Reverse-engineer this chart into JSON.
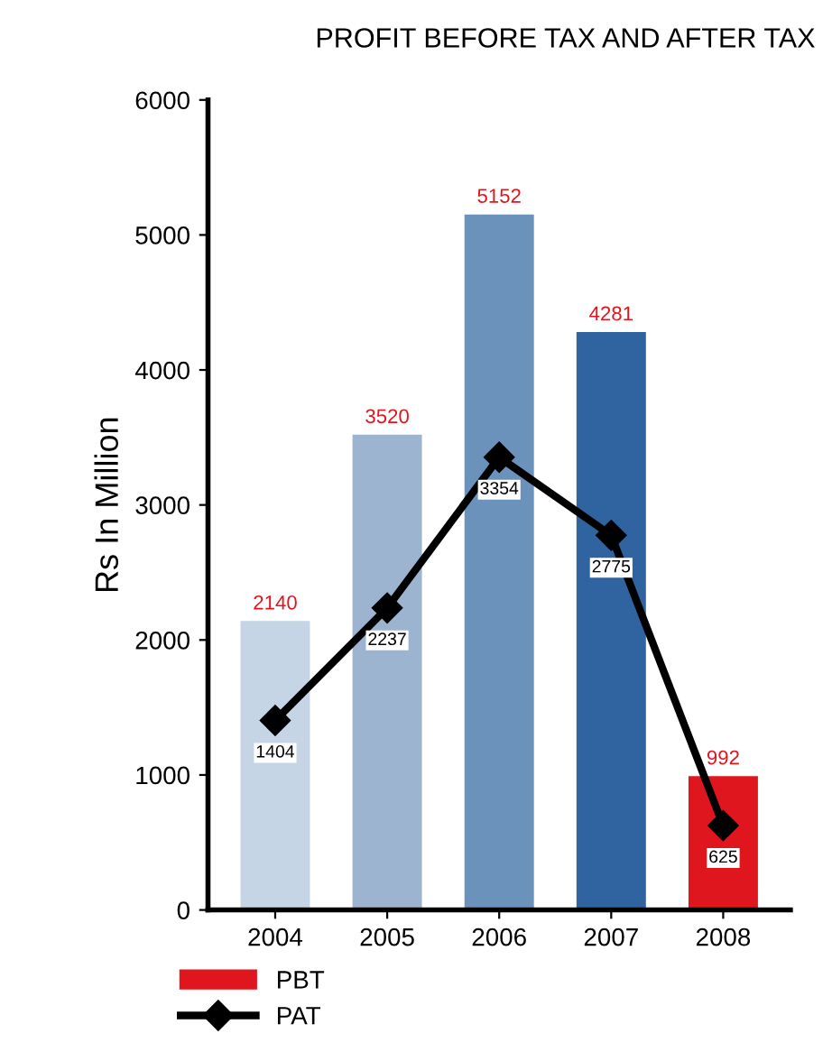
{
  "chart_data": {
    "type": "bar",
    "title": "PROFIT BEFORE TAX AND AFTER TAX",
    "ylabel": "Rs In Million",
    "categories": [
      "2004",
      "2005",
      "2006",
      "2007",
      "2008"
    ],
    "series": [
      {
        "name": "PBT",
        "color": "#e0161e",
        "colors": [
          "#c5d5e5",
          "#9db4d0",
          "#6a92bb",
          "#2f64a0",
          "#e0161e"
        ],
        "values": [
          2140,
          3520,
          5152,
          4281,
          992
        ]
      },
      {
        "name": "PAT",
        "type": "line",
        "color": "#000000",
        "values": [
          1404,
          2237,
          3354,
          2775,
          625
        ],
        "marker": "diamond",
        "line_style": "solid"
      }
    ],
    "ylim": [
      0,
      6000
    ],
    "yticks": [
      0,
      1000,
      2000,
      3000,
      4000,
      5000,
      6000
    ],
    "grid": false,
    "legend": "bottom left",
    "data_labels": true
  }
}
